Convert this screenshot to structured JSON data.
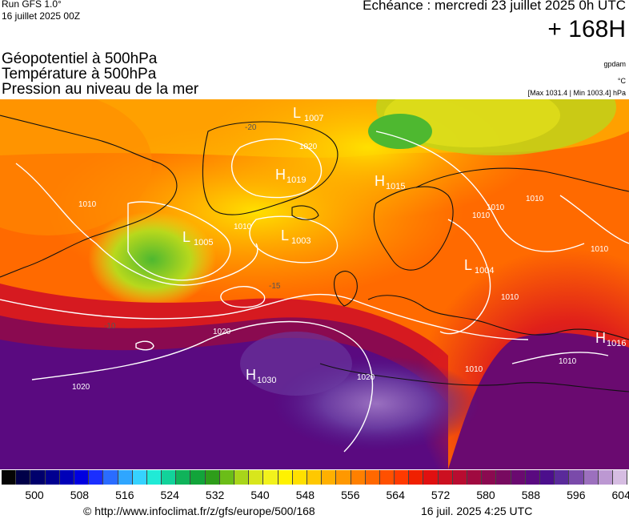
{
  "header": {
    "run": "Run GFS 1.0°",
    "run_date": "16 juillet 2025 00Z",
    "echeance": "Echéance : mercredi 23 juillet 2025 0h UTC",
    "hours": "+ 168H",
    "title_lines": [
      "Géopotentiel à 500hPa",
      "Température à 500hPa",
      "Pression au niveau de la mer"
    ],
    "units": [
      "gpdam",
      "°C",
      "[Max 1031.4 | Min 1003.4] hPa"
    ]
  },
  "map": {
    "pressure_centers": [
      {
        "type": "L",
        "value": "1007"
      },
      {
        "type": "H",
        "value": "1019"
      },
      {
        "type": "H",
        "value": "1015"
      },
      {
        "type": "L",
        "value": "1005"
      },
      {
        "type": "L",
        "value": "1003"
      },
      {
        "type": "L",
        "value": "1004"
      },
      {
        "type": "H",
        "value": "1016"
      },
      {
        "type": "H",
        "value": "1030"
      }
    ],
    "isobar_labels": [
      "1010",
      "1020",
      "1020",
      "1010",
      "1010",
      "1010",
      "1010",
      "1010",
      "1020",
      "1010",
      "1020",
      "1010",
      "1010"
    ],
    "temperature_labels": [
      "-20",
      "-10",
      "-15"
    ]
  },
  "colorbar": {
    "colors": [
      "#050505",
      "#000048",
      "#00006c",
      "#000090",
      "#0000b8",
      "#0000e0",
      "#1a2eff",
      "#2a6cff",
      "#2fa6ff",
      "#36d2ff",
      "#20ead6",
      "#12d29a",
      "#10b35a",
      "#12a43a",
      "#2e9d1a",
      "#6bbd18",
      "#a8d51a",
      "#d8e61c",
      "#f2f21c",
      "#fff200",
      "#ffe000",
      "#ffc800",
      "#ffb000",
      "#ff9800",
      "#ff8000",
      "#ff6800",
      "#ff5000",
      "#ff3a00",
      "#f02000",
      "#e01010",
      "#cc1020",
      "#b80c30",
      "#a00a40",
      "#8a0a50",
      "#780a60",
      "#6a0a70",
      "#5a0a80",
      "#4c0e8c",
      "#5a2a9a",
      "#7a4aaa",
      "#9c70be",
      "#bc98d2",
      "#d6bde2"
    ],
    "ticks": [
      "500",
      "508",
      "516",
      "524",
      "532",
      "540",
      "548",
      "556",
      "564",
      "572",
      "580",
      "588",
      "596",
      "604"
    ]
  },
  "footer": {
    "credit": "© http://www.infoclimat.fr/z/gfs/europe/500/168",
    "generated": "16 juil. 2025  4:25 UTC"
  }
}
